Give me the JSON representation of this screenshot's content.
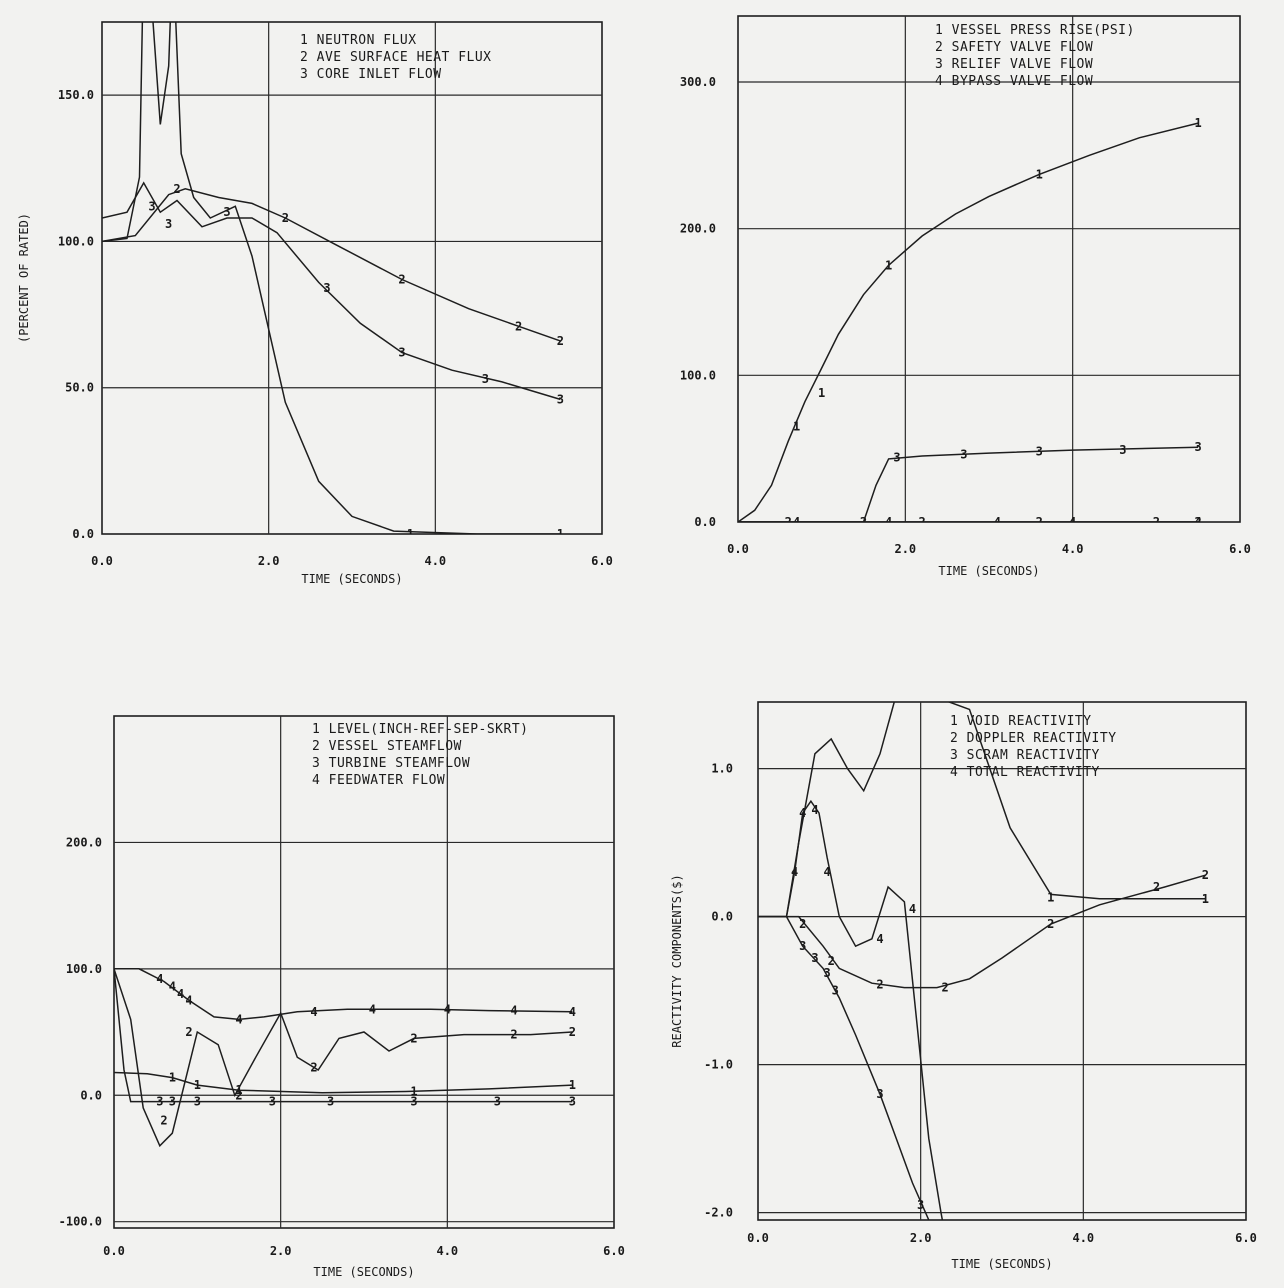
{
  "chart_data": [
    {
      "type": "line",
      "xlabel": "TIME (SECONDS)",
      "ylabel": "(PERCENT OF RATED)",
      "xlim": [
        0,
        6
      ],
      "ylim": [
        0,
        175
      ],
      "xticks": [
        0,
        2,
        4,
        6
      ],
      "xtick_labels": [
        "0.0",
        "2.0",
        "4.0",
        "6.0"
      ],
      "yticks": [
        0,
        50,
        100,
        150
      ],
      "ytick_labels": [
        "0.0",
        "50.0",
        "100.0",
        "150.0"
      ],
      "grid": true,
      "legend": [
        {
          "id": "1",
          "label": "NEUTRON FLUX"
        },
        {
          "id": "2",
          "label": "AVE SURFACE HEAT FLUX"
        },
        {
          "id": "3",
          "label": "CORE INLET FLOW"
        }
      ],
      "series": [
        {
          "id": "1",
          "x": [
            0,
            0.3,
            0.45,
            0.5,
            0.55,
            0.7,
            0.8,
            0.85,
            0.95,
            1.1,
            1.3,
            1.6,
            1.8,
            2.2,
            2.6,
            3.0,
            3.5,
            4.5,
            5.5
          ],
          "y": [
            100,
            101,
            122,
            200,
            200,
            140,
            160,
            200,
            130,
            115,
            108,
            112,
            95,
            45,
            18,
            6,
            1,
            0,
            0
          ],
          "marks_x": [
            3.7,
            5.5
          ],
          "marks_y": [
            0,
            0
          ]
        },
        {
          "id": "2",
          "x": [
            0,
            0.4,
            0.8,
            1.0,
            1.4,
            1.8,
            2.2,
            2.8,
            3.6,
            4.4,
            5.0,
            5.5
          ],
          "y": [
            100,
            102,
            116,
            118,
            115,
            113,
            108,
            99,
            87,
            77,
            71,
            66
          ],
          "marks_x": [
            0.9,
            2.2,
            3.6,
            5.0,
            5.5
          ],
          "marks_y": [
            118,
            108,
            87,
            71,
            66
          ]
        },
        {
          "id": "3",
          "x": [
            0,
            0.3,
            0.5,
            0.7,
            0.9,
            1.2,
            1.5,
            1.8,
            2.1,
            2.6,
            3.1,
            3.6,
            4.2,
            4.8,
            5.5
          ],
          "y": [
            108,
            110,
            120,
            110,
            114,
            105,
            108,
            108,
            103,
            86,
            72,
            62,
            56,
            52,
            46
          ],
          "marks_x": [
            0.6,
            0.8,
            1.5,
            2.7,
            3.6,
            4.6,
            5.5
          ],
          "marks_y": [
            112,
            106,
            110,
            84,
            62,
            53,
            46
          ]
        }
      ]
    },
    {
      "type": "line",
      "xlabel": "TIME (SECONDS)",
      "ylabel": "",
      "xlim": [
        0,
        6
      ],
      "ylim": [
        0,
        345
      ],
      "xticks": [
        0,
        2,
        4,
        6
      ],
      "xtick_labels": [
        "0.0",
        "2.0",
        "4.0",
        "6.0"
      ],
      "yticks": [
        0,
        100,
        200,
        300
      ],
      "ytick_labels": [
        "0.0",
        "100.0",
        "200.0",
        "300.0"
      ],
      "grid": true,
      "legend": [
        {
          "id": "1",
          "label": "VESSEL PRESS RISE(PSI)"
        },
        {
          "id": "2",
          "label": "SAFETY VALVE FLOW"
        },
        {
          "id": "3",
          "label": "RELIEF VALVE FLOW"
        },
        {
          "id": "4",
          "label": "BYPASS VALVE FLOW"
        }
      ],
      "series": [
        {
          "id": "1",
          "x": [
            0,
            0.2,
            0.4,
            0.6,
            0.8,
            1.0,
            1.2,
            1.5,
            1.8,
            2.2,
            2.6,
            3.0,
            3.6,
            4.2,
            4.8,
            5.5
          ],
          "y": [
            0,
            8,
            25,
            55,
            82,
            105,
            128,
            155,
            175,
            195,
            210,
            222,
            237,
            250,
            262,
            272
          ],
          "marks_x": [
            0.7,
            1.0,
            1.8,
            3.6,
            5.5
          ],
          "marks_y": [
            65,
            88,
            175,
            237,
            272
          ]
        },
        {
          "id": "2",
          "x": [
            0,
            1.4,
            2.0,
            3.0,
            4.0,
            5.5
          ],
          "y": [
            0,
            0,
            0,
            0,
            0,
            0
          ],
          "marks_x": [
            0.6,
            1.5,
            2.2,
            3.6,
            5.0,
            5.5
          ],
          "marks_y": [
            0,
            0,
            0,
            0,
            0,
            0
          ]
        },
        {
          "id": "3",
          "x": [
            0,
            1.5,
            1.65,
            1.8,
            2.2,
            3.0,
            4.0,
            5.5
          ],
          "y": [
            0,
            0,
            25,
            43,
            45,
            47,
            49,
            51
          ],
          "marks_x": [
            1.9,
            2.7,
            3.6,
            4.6,
            5.5
          ],
          "marks_y": [
            44,
            46,
            48,
            49,
            51
          ]
        },
        {
          "id": "4",
          "x": [
            0,
            1.0,
            2.0,
            3.0,
            4.0,
            5.5
          ],
          "y": [
            0,
            0,
            0,
            0,
            0,
            0
          ],
          "marks_x": [
            0.7,
            1.8,
            3.1,
            4.0,
            5.5
          ],
          "marks_y": [
            0,
            0,
            0,
            0,
            0
          ]
        }
      ]
    },
    {
      "type": "line",
      "xlabel": "TIME (SECONDS)",
      "ylabel": "",
      "xlim": [
        0,
        6
      ],
      "ylim": [
        -105,
        300
      ],
      "xticks": [
        0,
        2,
        4,
        6
      ],
      "xtick_labels": [
        "0.0",
        "2.0",
        "4.0",
        "6.0"
      ],
      "yticks": [
        -100,
        0,
        100,
        200
      ],
      "ytick_labels": [
        "-100.0",
        "0.0",
        "100.0",
        "200.0"
      ],
      "grid": true,
      "legend": [
        {
          "id": "1",
          "label": "LEVEL(INCH-REF-SEP-SKRT)"
        },
        {
          "id": "2",
          "label": "VESSEL STEAMFLOW"
        },
        {
          "id": "3",
          "label": "TURBINE STEAMFLOW"
        },
        {
          "id": "4",
          "label": "FEEDWATER FLOW"
        }
      ],
      "series": [
        {
          "id": "1",
          "x": [
            0,
            0.4,
            0.7,
            1.0,
            1.5,
            2.5,
            3.5,
            4.5,
            5.5
          ],
          "y": [
            18,
            17,
            14,
            8,
            4,
            2,
            3,
            5,
            8
          ],
          "marks_x": [
            0.7,
            1.0,
            1.5,
            3.6,
            5.5
          ],
          "marks_y": [
            14,
            8,
            4,
            3,
            8
          ]
        },
        {
          "id": "2",
          "x": [
            0,
            0.2,
            0.35,
            0.55,
            0.7,
            0.85,
            1.0,
            1.25,
            1.45,
            1.7,
            2.0,
            2.2,
            2.45,
            2.7,
            3.0,
            3.3,
            3.6,
            4.2,
            5.0,
            5.5
          ],
          "y": [
            100,
            60,
            -10,
            -40,
            -30,
            10,
            50,
            40,
            0,
            30,
            65,
            30,
            20,
            45,
            50,
            35,
            45,
            48,
            48,
            50
          ],
          "marks_x": [
            0.6,
            0.9,
            1.5,
            2.4,
            3.6,
            4.8,
            5.5
          ],
          "marks_y": [
            -20,
            50,
            0,
            22,
            45,
            48,
            50
          ]
        },
        {
          "id": "3",
          "x": [
            0,
            0.12,
            0.2,
            1.0,
            2.0,
            3.0,
            4.0,
            5.5
          ],
          "y": [
            100,
            20,
            -5,
            -5,
            -5,
            -5,
            -5,
            -5
          ],
          "marks_x": [
            0.55,
            0.7,
            1.0,
            1.9,
            2.6,
            3.6,
            4.6,
            5.5
          ],
          "marks_y": [
            -5,
            -5,
            -5,
            -5,
            -5,
            -5,
            -5,
            -5
          ]
        },
        {
          "id": "4",
          "x": [
            0,
            0.3,
            0.6,
            0.9,
            1.2,
            1.5,
            1.8,
            2.2,
            2.8,
            3.2,
            3.8,
            4.5,
            5.5
          ],
          "y": [
            100,
            100,
            90,
            75,
            62,
            60,
            62,
            66,
            68,
            68,
            68,
            67,
            66
          ],
          "marks_x": [
            0.55,
            0.7,
            0.8,
            0.9,
            1.5,
            2.4,
            3.1,
            4.0,
            4.8,
            5.5
          ],
          "marks_y": [
            92,
            86,
            80,
            75,
            60,
            66,
            68,
            68,
            67,
            66
          ]
        }
      ]
    },
    {
      "type": "line",
      "xlabel": "TIME (SECONDS)",
      "ylabel": "REACTIVITY COMPONENTS($)",
      "xlim": [
        0,
        6
      ],
      "ylim": [
        -2.05,
        1.45
      ],
      "xticks": [
        0,
        2,
        4,
        6
      ],
      "xtick_labels": [
        "0.0",
        "2.0",
        "4.0",
        "6.0"
      ],
      "yticks": [
        -2,
        -1,
        0,
        1
      ],
      "ytick_labels": [
        "-2.0",
        "-1.0",
        "0.0",
        "1.0"
      ],
      "grid": true,
      "legend": [
        {
          "id": "1",
          "label": "VOID REACTIVITY"
        },
        {
          "id": "2",
          "label": "DOPPLER REACTIVITY"
        },
        {
          "id": "3",
          "label": "SCRAM REACTIVITY"
        },
        {
          "id": "4",
          "label": "TOTAL REACTIVITY"
        }
      ],
      "series": [
        {
          "id": "1",
          "x": [
            0,
            0.35,
            0.5,
            0.7,
            0.9,
            1.1,
            1.3,
            1.5,
            1.7,
            2.1,
            2.6,
            3.1,
            3.6,
            4.2,
            4.8,
            5.5
          ],
          "y": [
            0,
            0,
            0.5,
            1.1,
            1.2,
            1.0,
            0.85,
            1.1,
            1.5,
            1.5,
            1.4,
            0.6,
            0.15,
            0.12,
            0.12,
            0.12
          ],
          "marks_x": [
            3.6,
            5.5
          ],
          "marks_y": [
            0.13,
            0.12
          ]
        },
        {
          "id": "2",
          "x": [
            0,
            0.5,
            0.8,
            1.0,
            1.4,
            1.8,
            2.2,
            2.6,
            3.0,
            3.6,
            4.2,
            5.0,
            5.5
          ],
          "y": [
            0,
            0,
            -0.2,
            -0.35,
            -0.45,
            -0.48,
            -0.48,
            -0.42,
            -0.28,
            -0.05,
            0.08,
            0.2,
            0.28
          ],
          "marks_x": [
            0.55,
            0.9,
            1.5,
            2.3,
            3.6,
            4.9,
            5.5
          ],
          "marks_y": [
            -0.05,
            -0.3,
            -0.46,
            -0.48,
            -0.05,
            0.2,
            0.28
          ]
        },
        {
          "id": "3",
          "x": [
            0,
            0.35,
            0.55,
            0.8,
            1.0,
            1.2,
            1.5,
            1.7,
            1.9,
            2.1,
            2.2,
            2.3
          ],
          "y": [
            0,
            0,
            -0.2,
            -0.35,
            -0.55,
            -0.8,
            -1.2,
            -1.5,
            -1.8,
            -2.05,
            -2.2,
            -2.3
          ],
          "marks_x": [
            0.55,
            0.7,
            0.85,
            0.95,
            1.5,
            2.0
          ],
          "marks_y": [
            -0.2,
            -0.28,
            -0.38,
            -0.5,
            -1.2,
            -1.95
          ]
        },
        {
          "id": "4",
          "x": [
            0,
            0.35,
            0.45,
            0.55,
            0.65,
            0.75,
            0.85,
            1.0,
            1.2,
            1.4,
            1.6,
            1.8,
            1.95,
            2.1,
            2.25,
            2.35
          ],
          "y": [
            0,
            0,
            0.3,
            0.7,
            0.78,
            0.7,
            0.4,
            0,
            -0.2,
            -0.15,
            0.2,
            0.1,
            -0.7,
            -1.5,
            -2.0,
            -2.3
          ],
          "marks_x": [
            0.45,
            0.55,
            0.7,
            0.85,
            1.5,
            1.9
          ],
          "marks_y": [
            0.3,
            0.7,
            0.72,
            0.3,
            -0.15,
            0.05
          ]
        }
      ]
    }
  ]
}
